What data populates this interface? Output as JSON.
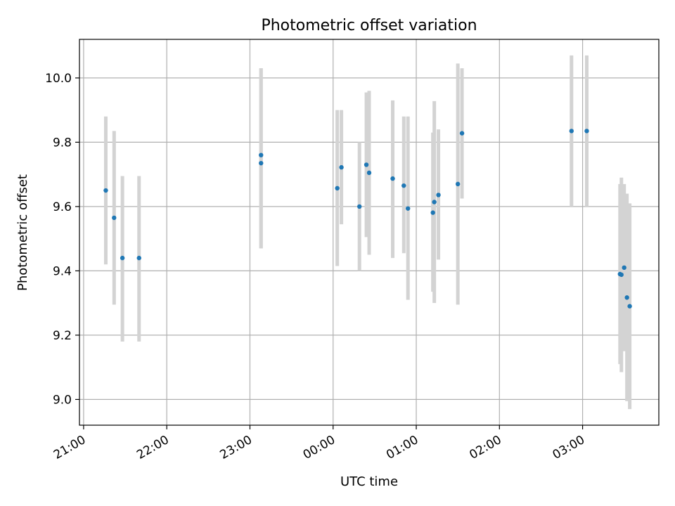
{
  "chart_data": {
    "type": "scatter",
    "title": "Photometric offset variation",
    "xlabel": "UTC time",
    "ylabel": "Photometric offset",
    "x_unit": "UTC time of day (continues past midnight into next day)",
    "xlim": [
      "20:57",
      "27:55"
    ],
    "ylim": [
      8.92,
      10.12
    ],
    "x_ticks": [
      "21:00",
      "22:00",
      "23:00",
      "00:00",
      "01:00",
      "02:00",
      "03:00"
    ],
    "y_ticks": [
      9.0,
      9.2,
      9.4,
      9.6,
      9.8,
      10.0
    ],
    "grid": true,
    "colors": {
      "point": "#1f77b4",
      "errorbar": "#d3d3d3",
      "grid": "#b0b0b0",
      "axes": "#000000"
    },
    "points": [
      {
        "t": "21:16",
        "y": 9.65,
        "lo": 9.42,
        "hi": 9.88
      },
      {
        "t": "21:22",
        "y": 9.565,
        "lo": 9.295,
        "hi": 9.835
      },
      {
        "t": "21:28",
        "y": 9.44,
        "lo": 9.18,
        "hi": 9.695
      },
      {
        "t": "21:40",
        "y": 9.44,
        "lo": 9.18,
        "hi": 9.695
      },
      {
        "t": "23:08",
        "y": 9.76,
        "lo": 9.47,
        "hi": 10.03
      },
      {
        "t": "23:08",
        "y": 9.735,
        "lo": 9.47,
        "hi": 10.03
      },
      {
        "t": "00:03",
        "y": 9.657,
        "lo": 9.415,
        "hi": 9.9
      },
      {
        "t": "00:06",
        "y": 9.722,
        "lo": 9.545,
        "hi": 9.9
      },
      {
        "t": "00:19",
        "y": 9.6,
        "lo": 9.4,
        "hi": 9.8
      },
      {
        "t": "00:24",
        "y": 9.73,
        "lo": 9.505,
        "hi": 9.955
      },
      {
        "t": "00:26",
        "y": 9.705,
        "lo": 9.45,
        "hi": 9.96
      },
      {
        "t": "00:43",
        "y": 9.687,
        "lo": 9.44,
        "hi": 9.93
      },
      {
        "t": "00:51",
        "y": 9.665,
        "lo": 9.455,
        "hi": 9.88
      },
      {
        "t": "00:54",
        "y": 9.594,
        "lo": 9.31,
        "hi": 9.88
      },
      {
        "t": "01:12",
        "y": 9.581,
        "lo": 9.335,
        "hi": 9.83
      },
      {
        "t": "01:13",
        "y": 9.614,
        "lo": 9.3,
        "hi": 9.928
      },
      {
        "t": "01:16",
        "y": 9.636,
        "lo": 9.435,
        "hi": 9.84
      },
      {
        "t": "01:30",
        "y": 9.67,
        "lo": 9.295,
        "hi": 10.045
      },
      {
        "t": "01:33",
        "y": 9.828,
        "lo": 9.625,
        "hi": 10.03
      },
      {
        "t": "02:52",
        "y": 9.835,
        "lo": 9.6,
        "hi": 10.07
      },
      {
        "t": "03:03",
        "y": 9.835,
        "lo": 9.6,
        "hi": 10.07
      },
      {
        "t": "03:27",
        "y": 9.39,
        "lo": 9.11,
        "hi": 9.67
      },
      {
        "t": "03:28",
        "y": 9.388,
        "lo": 9.085,
        "hi": 9.69
      },
      {
        "t": "03:30",
        "y": 9.41,
        "lo": 9.15,
        "hi": 9.67
      },
      {
        "t": "03:32",
        "y": 9.317,
        "lo": 8.995,
        "hi": 9.64
      },
      {
        "t": "03:34",
        "y": 9.29,
        "lo": 8.97,
        "hi": 9.61
      }
    ]
  }
}
